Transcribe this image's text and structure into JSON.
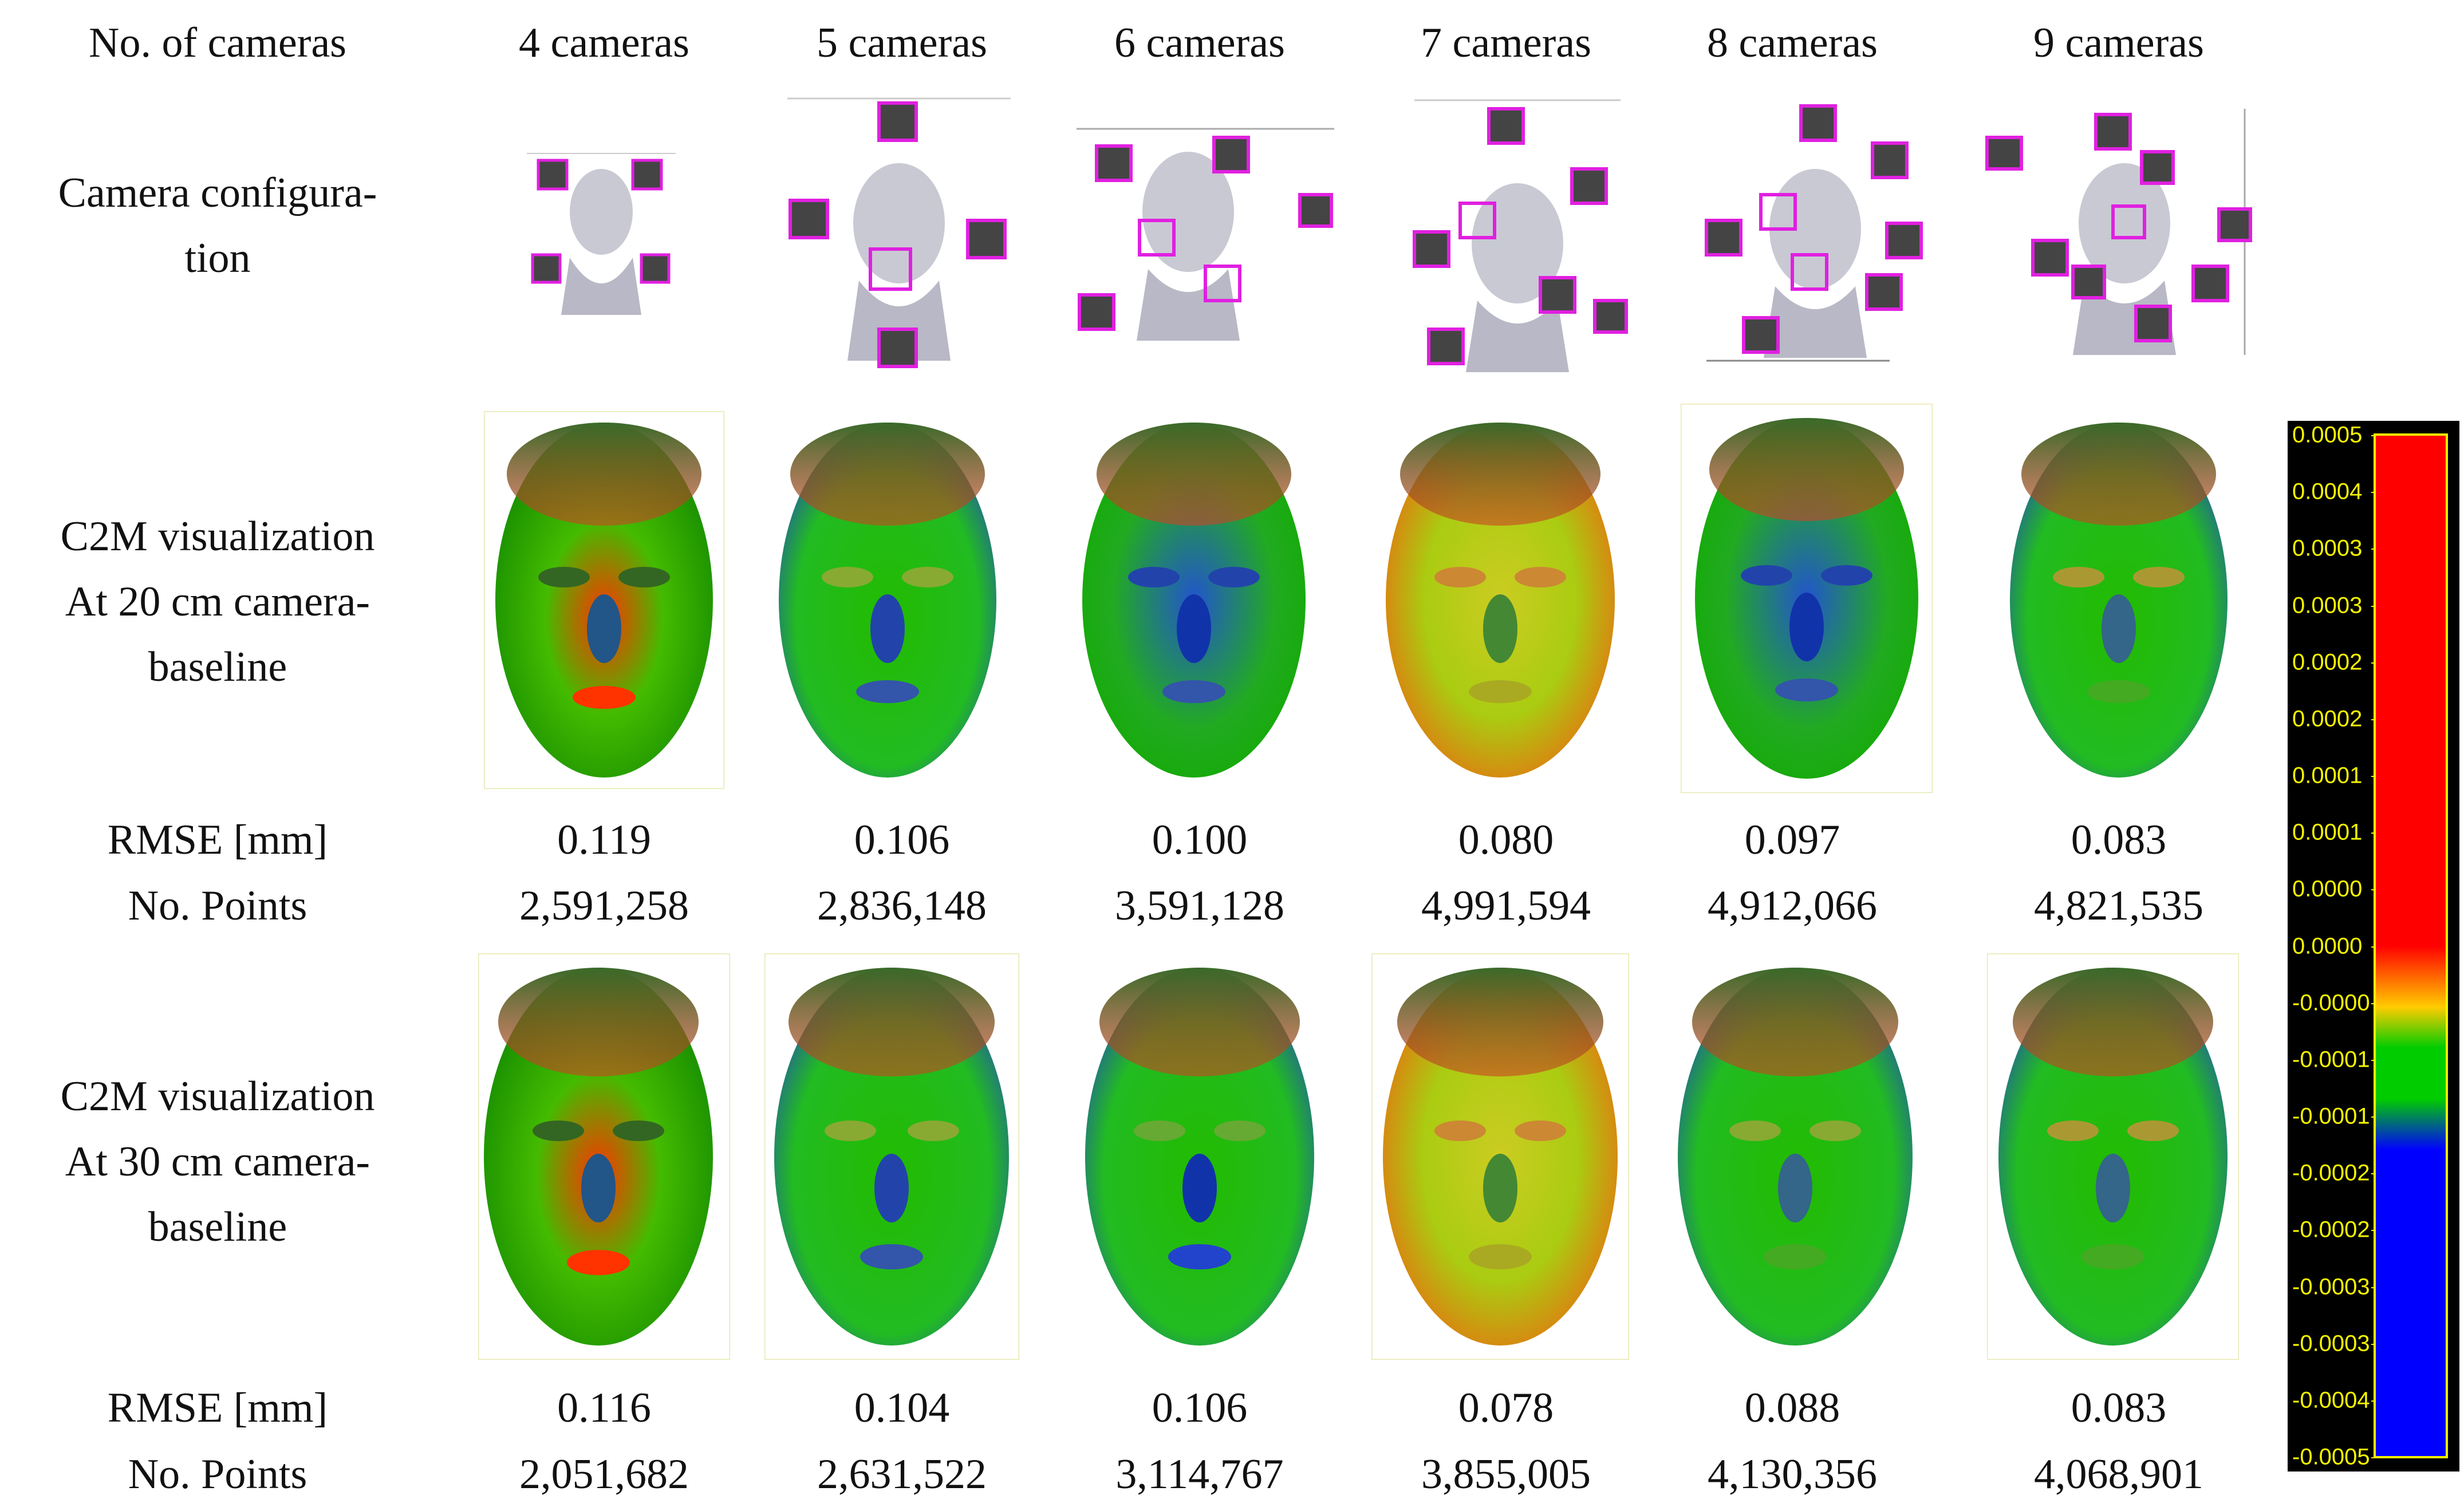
{
  "header": {
    "row_label": "No. of cameras",
    "columns": [
      "4 cameras",
      "5 cameras",
      "6 cameras",
      "7 cameras",
      "8 cameras",
      "9 cameras"
    ]
  },
  "rows": {
    "camera_configuration": [
      "Camera configura-",
      "tion"
    ],
    "c2m_20": [
      "C2M visualization",
      "At 20 cm camera-",
      "baseline"
    ],
    "c2m_30": [
      "C2M visualization",
      "At 30 cm camera-",
      "baseline"
    ]
  },
  "metrics": {
    "rmse_label": "RMSE [mm]",
    "points_label": "No. Points",
    "at_20cm": {
      "rmse": [
        "0.119",
        "0.106",
        "0.100",
        "0.080",
        "0.097",
        "0.083"
      ],
      "points": [
        "2,591,258",
        "2,836,148",
        "3,591,128",
        "4,991,594",
        "4,912,066",
        "4,821,535"
      ]
    },
    "at_30cm": {
      "rmse": [
        "0.116",
        "0.104",
        "0.106",
        "0.078",
        "0.088",
        "0.083"
      ],
      "points": [
        "2,051,682",
        "2,631,522",
        "3,114,767",
        "3,855,005",
        "4,130,356",
        "4,068,901"
      ]
    }
  },
  "colorbar": {
    "labels": [
      "0.0005",
      "0.0004",
      "0.0003",
      "0.0003",
      "0.0002",
      "0.0002",
      "0.0001",
      "0.0001",
      "0.0000",
      "0.0000",
      "-0.0000",
      "-0.0001",
      "-0.0001",
      "-0.0002",
      "-0.0002",
      "-0.0003",
      "-0.0003",
      "-0.0004",
      "-0.0005"
    ],
    "colors": {
      "high": "#ff0000",
      "mid_high": "#ffcc00",
      "mid": "#00cc00",
      "low": "#0000ff",
      "frame": "#f5f500",
      "background": "#000000"
    }
  },
  "camera_glyph_color": "#e020e0"
}
